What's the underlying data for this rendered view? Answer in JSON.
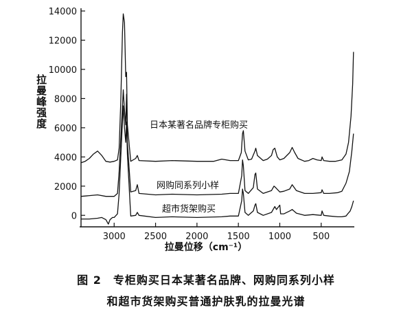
{
  "chart_data": {
    "type": "line",
    "title": "",
    "xlabel": "拉曼位移（cm⁻¹）",
    "ylabel": "拉曼峰强度",
    "xlim": [
      3400,
      100
    ],
    "ylim": [
      -600,
      14000
    ],
    "x_ticks": [
      3000,
      2500,
      2000,
      1500,
      1000,
      500
    ],
    "y_ticks": [
      0,
      2000,
      4000,
      6000,
      8000,
      10000,
      12000,
      14000
    ],
    "x_reversed": true,
    "grid": false,
    "series": [
      {
        "name": "日本某著名品牌专柜购买",
        "points": [
          [
            3400,
            3600
          ],
          [
            3350,
            3700
          ],
          [
            3300,
            3900
          ],
          [
            3250,
            4200
          ],
          [
            3200,
            4400
          ],
          [
            3150,
            4100
          ],
          [
            3100,
            3700
          ],
          [
            3050,
            3650
          ],
          [
            3000,
            3700
          ],
          [
            2960,
            3800
          ],
          [
            2940,
            4600
          ],
          [
            2920,
            7800
          ],
          [
            2900,
            12500
          ],
          [
            2890,
            13800
          ],
          [
            2875,
            13200
          ],
          [
            2860,
            9500
          ],
          [
            2850,
            9800
          ],
          [
            2840,
            6200
          ],
          [
            2800,
            3700
          ],
          [
            2740,
            3900
          ],
          [
            2720,
            4100
          ],
          [
            2700,
            3750
          ],
          [
            2500,
            3700
          ],
          [
            2300,
            3750
          ],
          [
            2000,
            3700
          ],
          [
            1800,
            3700
          ],
          [
            1700,
            3850
          ],
          [
            1600,
            3750
          ],
          [
            1500,
            3750
          ],
          [
            1465,
            4300
          ],
          [
            1450,
            5600
          ],
          [
            1440,
            5800
          ],
          [
            1420,
            4400
          ],
          [
            1380,
            3800
          ],
          [
            1340,
            3850
          ],
          [
            1300,
            4400
          ],
          [
            1290,
            4600
          ],
          [
            1270,
            4100
          ],
          [
            1200,
            3750
          ],
          [
            1150,
            3850
          ],
          [
            1100,
            4100
          ],
          [
            1080,
            4500
          ],
          [
            1060,
            4600
          ],
          [
            1030,
            4000
          ],
          [
            1000,
            3800
          ],
          [
            950,
            3900
          ],
          [
            880,
            4300
          ],
          [
            850,
            4650
          ],
          [
            820,
            4300
          ],
          [
            780,
            3900
          ],
          [
            700,
            3700
          ],
          [
            650,
            3750
          ],
          [
            600,
            3900
          ],
          [
            550,
            3800
          ],
          [
            500,
            3750
          ],
          [
            490,
            4000
          ],
          [
            470,
            3750
          ],
          [
            400,
            3700
          ],
          [
            330,
            3700
          ],
          [
            250,
            3800
          ],
          [
            200,
            4200
          ],
          [
            170,
            5000
          ],
          [
            140,
            6800
          ],
          [
            120,
            9000
          ],
          [
            110,
            11200
          ]
        ]
      },
      {
        "name": "网购同系列小样",
        "points": [
          [
            3400,
            1300
          ],
          [
            3300,
            1350
          ],
          [
            3200,
            1400
          ],
          [
            3100,
            1300
          ],
          [
            3050,
            1300
          ],
          [
            3000,
            1300
          ],
          [
            2960,
            1500
          ],
          [
            2940,
            3000
          ],
          [
            2920,
            5200
          ],
          [
            2900,
            7400
          ],
          [
            2890,
            8600
          ],
          [
            2875,
            7200
          ],
          [
            2860,
            6200
          ],
          [
            2850,
            8300
          ],
          [
            2840,
            5000
          ],
          [
            2800,
            1600
          ],
          [
            2740,
            1700
          ],
          [
            2720,
            2100
          ],
          [
            2700,
            1500
          ],
          [
            2500,
            1400
          ],
          [
            2300,
            1450
          ],
          [
            2000,
            1400
          ],
          [
            1700,
            1450
          ],
          [
            1600,
            1500
          ],
          [
            1500,
            1500
          ],
          [
            1460,
            2700
          ],
          [
            1450,
            3800
          ],
          [
            1440,
            3400
          ],
          [
            1420,
            1700
          ],
          [
            1380,
            1500
          ],
          [
            1320,
            1900
          ],
          [
            1300,
            2800
          ],
          [
            1290,
            2900
          ],
          [
            1270,
            1800
          ],
          [
            1200,
            1500
          ],
          [
            1100,
            1700
          ],
          [
            1070,
            2000
          ],
          [
            1050,
            1900
          ],
          [
            1000,
            1600
          ],
          [
            950,
            1650
          ],
          [
            880,
            1800
          ],
          [
            850,
            2100
          ],
          [
            800,
            1700
          ],
          [
            700,
            1500
          ],
          [
            600,
            1500
          ],
          [
            500,
            1550
          ],
          [
            490,
            1750
          ],
          [
            470,
            1500
          ],
          [
            400,
            1500
          ],
          [
            300,
            1550
          ],
          [
            250,
            1650
          ],
          [
            200,
            2200
          ],
          [
            160,
            3000
          ],
          [
            130,
            4400
          ],
          [
            110,
            5600
          ]
        ]
      },
      {
        "name": "超市货架购买",
        "points": [
          [
            3400,
            -250
          ],
          [
            3300,
            -250
          ],
          [
            3200,
            -200
          ],
          [
            3150,
            -150
          ],
          [
            3100,
            -300
          ],
          [
            3070,
            -600
          ],
          [
            3050,
            -300
          ],
          [
            3020,
            -150
          ],
          [
            3000,
            -150
          ],
          [
            2960,
            100
          ],
          [
            2940,
            1500
          ],
          [
            2920,
            4000
          ],
          [
            2900,
            6400
          ],
          [
            2890,
            7500
          ],
          [
            2875,
            6000
          ],
          [
            2860,
            5000
          ],
          [
            2850,
            6400
          ],
          [
            2840,
            4200
          ],
          [
            2800,
            -50
          ],
          [
            2740,
            0
          ],
          [
            2720,
            200
          ],
          [
            2700,
            0
          ],
          [
            2500,
            -150
          ],
          [
            2300,
            -100
          ],
          [
            2000,
            -150
          ],
          [
            1700,
            -100
          ],
          [
            1600,
            -50
          ],
          [
            1500,
            -50
          ],
          [
            1460,
            1000
          ],
          [
            1450,
            1800
          ],
          [
            1440,
            1500
          ],
          [
            1420,
            200
          ],
          [
            1380,
            0
          ],
          [
            1320,
            300
          ],
          [
            1300,
            700
          ],
          [
            1290,
            800
          ],
          [
            1270,
            200
          ],
          [
            1200,
            0
          ],
          [
            1100,
            200
          ],
          [
            1060,
            600
          ],
          [
            1040,
            400
          ],
          [
            1000,
            700
          ],
          [
            990,
            100
          ],
          [
            950,
            100
          ],
          [
            880,
            300
          ],
          [
            850,
            400
          ],
          [
            800,
            150
          ],
          [
            700,
            0
          ],
          [
            600,
            50
          ],
          [
            500,
            0
          ],
          [
            490,
            300
          ],
          [
            470,
            0
          ],
          [
            400,
            -50
          ],
          [
            300,
            -100
          ],
          [
            250,
            -100
          ],
          [
            200,
            -50
          ],
          [
            180,
            100
          ],
          [
            150,
            300
          ],
          [
            130,
            600
          ],
          [
            110,
            1000
          ]
        ]
      }
    ],
    "annotations": [
      "日本某著名品牌专柜购买",
      "网购同系列小样",
      "超市货架购买"
    ]
  },
  "caption": {
    "line1": "图 2　专柜购买日本某著名品牌、网购同系列小样",
    "line2": "和超市货架购买普通护肤乳的拉曼光谱"
  }
}
